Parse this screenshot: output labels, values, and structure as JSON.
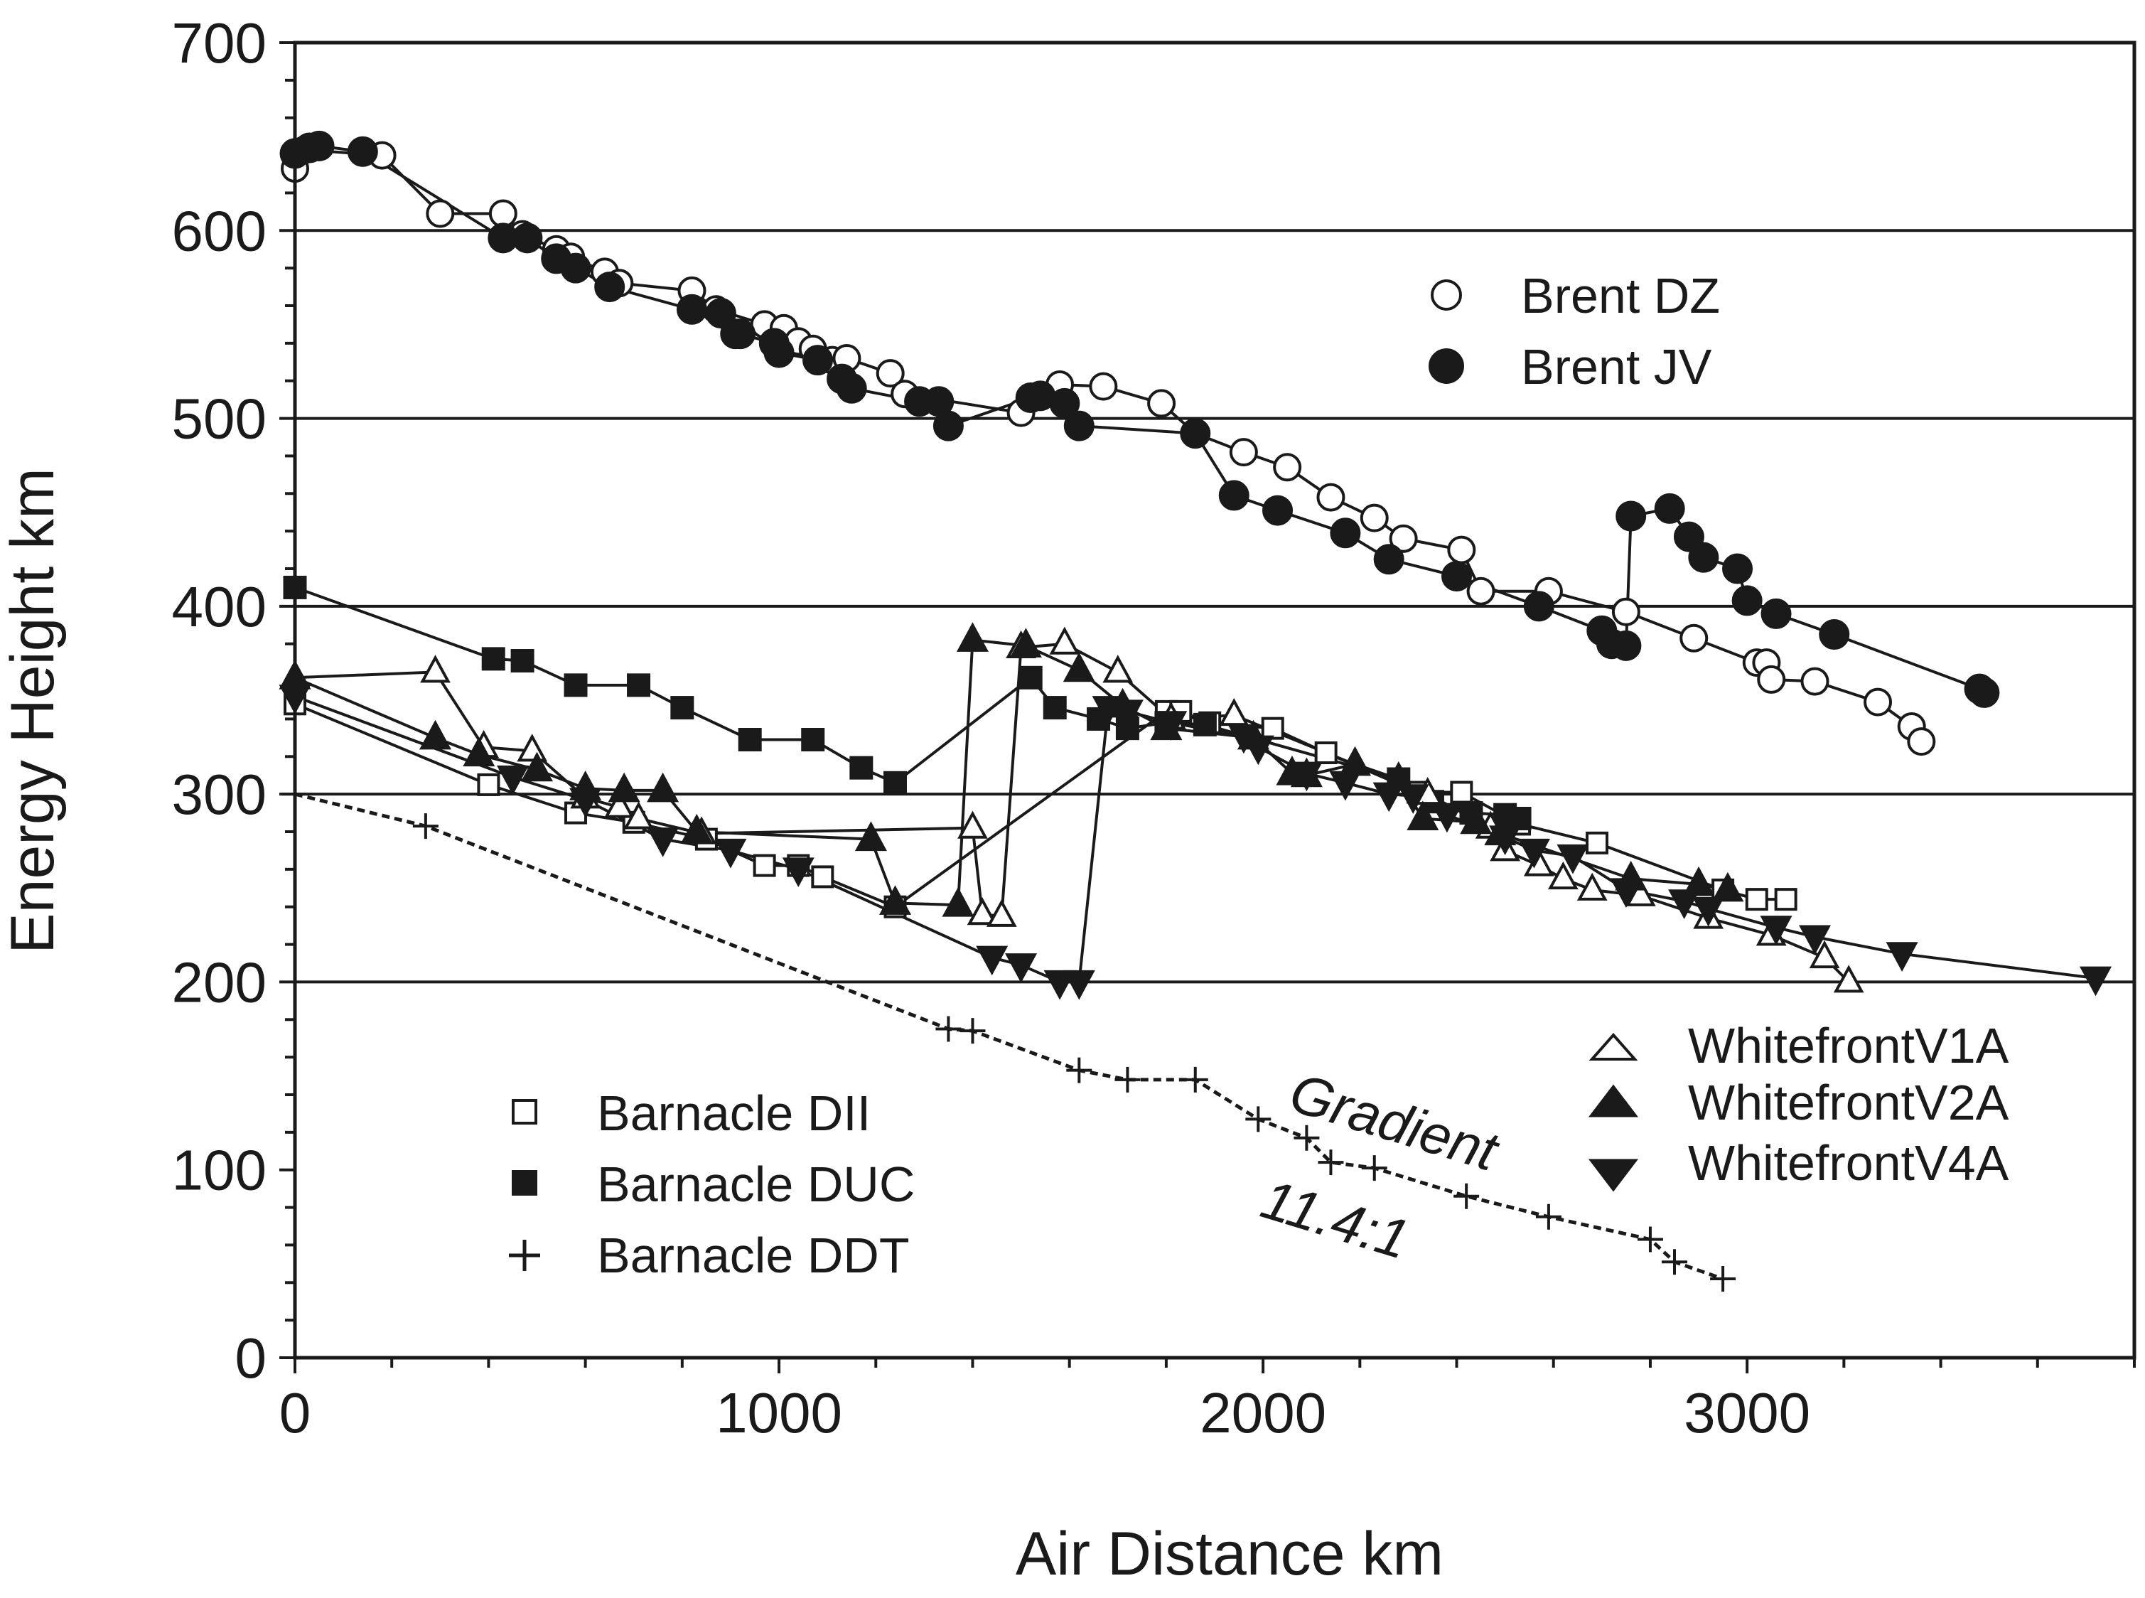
{
  "chart_data": {
    "type": "line",
    "title": "",
    "xlabel": "Air Distance km",
    "ylabel": "Energy Height km",
    "xlim": [
      0,
      3800
    ],
    "ylim": [
      0,
      700
    ],
    "xticks": [
      0,
      1000,
      2000,
      3000
    ],
    "yticks": [
      0,
      100,
      200,
      300,
      400,
      500,
      600,
      700
    ],
    "x_minor_step": 200,
    "y_minor_step": 20,
    "gridlines_y": [
      200,
      300,
      400,
      500,
      600
    ],
    "series": [
      {
        "name": "Brent DZ",
        "marker": "circle-open",
        "points": [
          [
            0,
            633
          ],
          [
            20,
            643
          ],
          [
            180,
            640
          ],
          [
            300,
            609
          ],
          [
            430,
            609
          ],
          [
            470,
            598
          ],
          [
            540,
            590
          ],
          [
            570,
            586
          ],
          [
            640,
            578
          ],
          [
            670,
            572
          ],
          [
            820,
            568
          ],
          [
            870,
            558
          ],
          [
            970,
            550
          ],
          [
            1010,
            548
          ],
          [
            1040,
            541
          ],
          [
            1070,
            537
          ],
          [
            1110,
            531
          ],
          [
            1140,
            532
          ],
          [
            1230,
            524
          ],
          [
            1260,
            513
          ],
          [
            1500,
            503
          ],
          [
            1580,
            518
          ],
          [
            1670,
            517
          ],
          [
            1790,
            508
          ],
          [
            1860,
            492
          ],
          [
            1960,
            482
          ],
          [
            2050,
            474
          ],
          [
            2140,
            458
          ],
          [
            2230,
            447
          ],
          [
            2290,
            436
          ],
          [
            2410,
            430
          ],
          [
            2450,
            408
          ],
          [
            2590,
            408
          ],
          [
            2750,
            397
          ],
          [
            2890,
            383
          ],
          [
            3020,
            370
          ],
          [
            3040,
            370
          ],
          [
            3050,
            361
          ],
          [
            3140,
            360
          ],
          [
            3270,
            349
          ],
          [
            3340,
            336
          ],
          [
            3360,
            328
          ]
        ]
      },
      {
        "name": "Brent JV",
        "marker": "circle-filled",
        "points": [
          [
            0,
            641
          ],
          [
            30,
            644
          ],
          [
            50,
            645
          ],
          [
            140,
            642
          ],
          [
            430,
            596
          ],
          [
            480,
            596
          ],
          [
            540,
            585
          ],
          [
            580,
            580
          ],
          [
            650,
            570
          ],
          [
            820,
            558
          ],
          [
            880,
            556
          ],
          [
            910,
            545
          ],
          [
            920,
            545
          ],
          [
            990,
            540
          ],
          [
            1000,
            535
          ],
          [
            1080,
            531
          ],
          [
            1130,
            521
          ],
          [
            1150,
            516
          ],
          [
            1290,
            509
          ],
          [
            1330,
            509
          ],
          [
            1350,
            496
          ],
          [
            1520,
            511
          ],
          [
            1540,
            512
          ],
          [
            1590,
            508
          ],
          [
            1620,
            496
          ],
          [
            1860,
            492
          ],
          [
            1940,
            459
          ],
          [
            2030,
            451
          ],
          [
            2170,
            439
          ],
          [
            2260,
            425
          ],
          [
            2400,
            416
          ],
          [
            2570,
            400
          ],
          [
            2700,
            387
          ],
          [
            2720,
            380
          ],
          [
            2750,
            379
          ],
          [
            2760,
            448
          ],
          [
            2840,
            452
          ],
          [
            2880,
            437
          ],
          [
            2910,
            426
          ],
          [
            2980,
            420
          ],
          [
            3000,
            403
          ],
          [
            3060,
            396
          ],
          [
            3180,
            385
          ],
          [
            3480,
            356
          ],
          [
            3490,
            354
          ]
        ]
      },
      {
        "name": "Barnacle DII",
        "marker": "square-open",
        "points": [
          [
            0,
            348
          ],
          [
            400,
            305
          ],
          [
            580,
            290
          ],
          [
            700,
            285
          ],
          [
            850,
            276
          ],
          [
            970,
            262
          ],
          [
            1040,
            262
          ],
          [
            1090,
            256
          ],
          [
            1240,
            240
          ],
          [
            1800,
            344
          ],
          [
            1830,
            344
          ],
          [
            1890,
            338
          ],
          [
            2020,
            335
          ],
          [
            2130,
            322
          ],
          [
            2320,
            301
          ],
          [
            2410,
            301
          ],
          [
            2530,
            284
          ],
          [
            2690,
            274
          ],
          [
            2950,
            249
          ],
          [
            3020,
            244
          ],
          [
            3080,
            244
          ]
        ]
      },
      {
        "name": "Barnacle DUC",
        "marker": "square-filled",
        "points": [
          [
            0,
            410
          ],
          [
            410,
            372
          ],
          [
            470,
            371
          ],
          [
            580,
            358
          ],
          [
            710,
            358
          ],
          [
            800,
            346
          ],
          [
            940,
            329
          ],
          [
            1070,
            329
          ],
          [
            1170,
            314
          ],
          [
            1240,
            306
          ],
          [
            1520,
            362
          ],
          [
            1570,
            346
          ],
          [
            1660,
            340
          ],
          [
            1720,
            335
          ],
          [
            1800,
            338
          ],
          [
            1880,
            337
          ],
          [
            2280,
            308
          ],
          [
            2350,
            296
          ],
          [
            2430,
            290
          ],
          [
            2500,
            289
          ],
          [
            2530,
            287
          ]
        ]
      },
      {
        "name": "Whitefront V1A",
        "marker": "triangle-up-open",
        "points": [
          [
            0,
            362
          ],
          [
            290,
            365
          ],
          [
            390,
            325
          ],
          [
            490,
            323
          ],
          [
            600,
            298
          ],
          [
            670,
            293
          ],
          [
            710,
            287
          ],
          [
            840,
            279
          ],
          [
            1400,
            282
          ],
          [
            1420,
            236
          ],
          [
            1460,
            235
          ],
          [
            1500,
            378
          ],
          [
            1590,
            380
          ],
          [
            1700,
            365
          ],
          [
            1810,
            340
          ],
          [
            1940,
            342
          ],
          [
            2340,
            300
          ],
          [
            2470,
            282
          ],
          [
            2500,
            270
          ],
          [
            2570,
            262
          ],
          [
            2620,
            255
          ],
          [
            2680,
            249
          ],
          [
            2780,
            246
          ],
          [
            2920,
            234
          ],
          [
            3050,
            225
          ],
          [
            3160,
            213
          ],
          [
            3210,
            200
          ]
        ]
      },
      {
        "name": "Whitefront V2A",
        "marker": "triangle-up-filled",
        "points": [
          [
            0,
            362
          ],
          [
            290,
            330
          ],
          [
            380,
            321
          ],
          [
            500,
            313
          ],
          [
            600,
            303
          ],
          [
            680,
            302
          ],
          [
            760,
            302
          ],
          [
            830,
            280
          ],
          [
            1190,
            276
          ],
          [
            1240,
            242
          ],
          [
            1370,
            241
          ],
          [
            1400,
            382
          ],
          [
            1510,
            379
          ],
          [
            1620,
            366
          ],
          [
            1710,
            347
          ],
          [
            1800,
            335
          ],
          [
            1980,
            330
          ],
          [
            2060,
            311
          ],
          [
            2090,
            310
          ],
          [
            2190,
            316
          ],
          [
            2280,
            308
          ],
          [
            2330,
            287
          ],
          [
            2440,
            285
          ],
          [
            2490,
            279
          ],
          [
            2760,
            255
          ],
          [
            2900,
            252
          ],
          [
            2960,
            249
          ]
        ]
      },
      {
        "name": "Whitefront V4A",
        "marker": "triangle-down-filled",
        "points": [
          [
            0,
            352
          ],
          [
            450,
            309
          ],
          [
            600,
            297
          ],
          [
            760,
            276
          ],
          [
            900,
            270
          ],
          [
            1040,
            260
          ],
          [
            1440,
            213
          ],
          [
            1500,
            209
          ],
          [
            1580,
            200
          ],
          [
            1620,
            200
          ],
          [
            1680,
            346
          ],
          [
            1720,
            344
          ],
          [
            1810,
            338
          ],
          [
            1960,
            331
          ],
          [
            1990,
            325
          ],
          [
            2090,
            311
          ],
          [
            2170,
            306
          ],
          [
            2260,
            300
          ],
          [
            2310,
            299
          ],
          [
            2380,
            289
          ],
          [
            2500,
            277
          ],
          [
            2560,
            270
          ],
          [
            2640,
            267
          ],
          [
            2750,
            249
          ],
          [
            2870,
            243
          ],
          [
            2920,
            239
          ],
          [
            3060,
            229
          ],
          [
            3140,
            224
          ],
          [
            3320,
            215
          ],
          [
            3720,
            202
          ]
        ]
      },
      {
        "name": "Barnacle DDT",
        "marker": "plus",
        "points": [
          [
            0,
            300
          ],
          [
            270,
            283
          ],
          [
            1350,
            175
          ],
          [
            1400,
            174
          ],
          [
            1620,
            153
          ],
          [
            1720,
            148
          ],
          [
            1860,
            148
          ],
          [
            1990,
            127
          ],
          [
            2090,
            117
          ],
          [
            2140,
            104
          ],
          [
            2230,
            101
          ],
          [
            2420,
            86
          ],
          [
            2590,
            75
          ],
          [
            2800,
            63
          ],
          [
            2850,
            51
          ],
          [
            2950,
            42
          ]
        ]
      }
    ],
    "legend": [
      {
        "group": "top-right",
        "entries": [
          "Brent DZ",
          "Brent JV"
        ]
      },
      {
        "group": "bottom-left",
        "entries": [
          "Barnacle DII",
          "Barnacle DUC",
          "Barnacle DDT"
        ]
      },
      {
        "group": "bottom-right",
        "entries": [
          "Whitefront V1A",
          "Whitefront V2A",
          "Whitefront V4A"
        ]
      }
    ],
    "legend_labels": {
      "brent_dz": "Brent DZ",
      "brent_jv": "Brent JV",
      "barnacle_dii": "Barnacle DII",
      "barnacle_duc": "Barnacle DUC",
      "barnacle_ddt": "Barnacle DDT",
      "whitefront_v1a": "WhitefrontV1A",
      "whitefront_v2a": "WhitefrontV2A",
      "whitefront_v4a": "WhitefrontV4A"
    },
    "annotations": {
      "gradient_title": "Gradient",
      "gradient_value": "11.4:1"
    },
    "colors": {
      "ink": "#1a1a1a",
      "background": "#ffffff"
    }
  }
}
